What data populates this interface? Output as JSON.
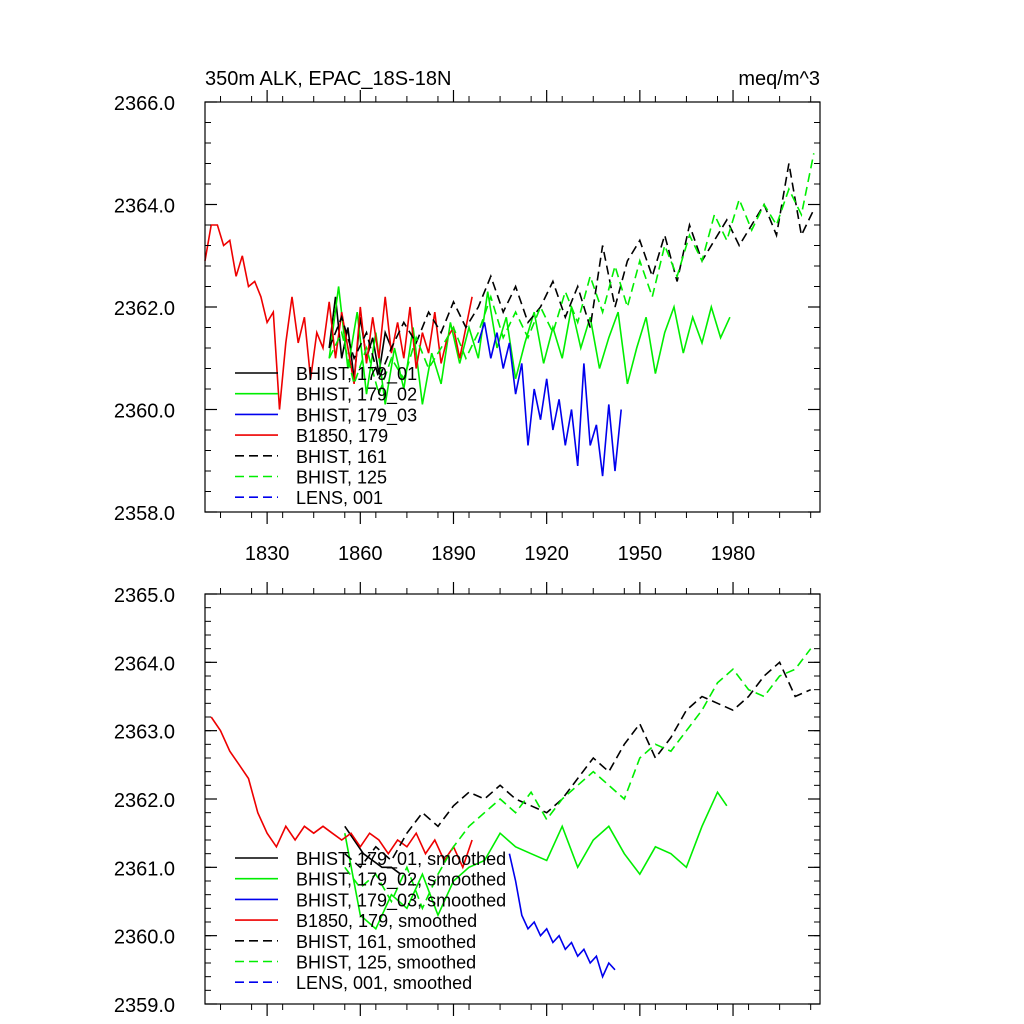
{
  "chart_data": [
    {
      "type": "line",
      "title": "350m ALK, EPAC_18S-18N",
      "units": "meq/m^3",
      "xlabel": "",
      "ylabel": "",
      "xlim": [
        1810,
        2008
      ],
      "ylim": [
        2358.0,
        2366.0
      ],
      "x_ticks": [
        1830,
        1860,
        1890,
        1920,
        1950,
        1980
      ],
      "x_tick_labels": [
        "1830",
        "1860",
        "1890",
        "1920",
        "1950",
        "1980"
      ],
      "y_ticks": [
        2358.0,
        2360.0,
        2362.0,
        2364.0,
        2366.0
      ],
      "y_tick_labels": [
        "2358.0",
        "2360.0",
        "2362.0",
        "2364.0",
        "2366.0"
      ],
      "grid": false,
      "legend_position": "bottom-left",
      "legend": [
        "BHIST, 179_01",
        "BHIST, 179_02",
        "BHIST, 179_03",
        "B1850, 179",
        "BHIST, 161",
        "BHIST, 125",
        "LENS, 001"
      ],
      "series": [
        {
          "name": "BHIST, 179_01",
          "color": "#000000",
          "dash": "solid",
          "x": [
            1850,
            1852,
            1854,
            1856,
            1858,
            1860,
            1862,
            1864,
            1866,
            1868,
            1870
          ],
          "y": [
            2361.2,
            2362.2,
            2361.0,
            2361.6,
            2360.6,
            2361.8,
            2361.0,
            2361.4,
            2360.7,
            2361.5,
            2361.2
          ]
        },
        {
          "name": "BHIST, 179_02",
          "color": "#00ee00",
          "dash": "solid",
          "x": [
            1850,
            1853,
            1856,
            1859,
            1862,
            1865,
            1868,
            1871,
            1874,
            1877,
            1880,
            1883,
            1886,
            1889,
            1892,
            1895,
            1898,
            1901,
            1904,
            1907,
            1910,
            1913,
            1916,
            1919,
            1922,
            1925,
            1928,
            1931,
            1934,
            1937,
            1940,
            1943,
            1946,
            1949,
            1952,
            1955,
            1958,
            1961,
            1964,
            1967,
            1970,
            1973,
            1976,
            1979
          ],
          "y": [
            2361.0,
            2362.4,
            2360.8,
            2361.9,
            2360.3,
            2361.5,
            2360.1,
            2361.2,
            2360.4,
            2361.6,
            2360.1,
            2361.1,
            2360.5,
            2361.7,
            2360.9,
            2361.6,
            2361.0,
            2362.3,
            2361.2,
            2361.8,
            2360.6,
            2361.3,
            2361.9,
            2360.9,
            2361.6,
            2361.0,
            2362.0,
            2361.2,
            2361.8,
            2360.8,
            2361.4,
            2361.9,
            2360.5,
            2361.2,
            2361.8,
            2360.7,
            2361.5,
            2362.0,
            2361.1,
            2361.8,
            2361.3,
            2362.0,
            2361.4,
            2361.8
          ]
        },
        {
          "name": "BHIST, 179_03",
          "color": "#0000ee",
          "dash": "solid",
          "x": [
            1898,
            1900,
            1902,
            1904,
            1906,
            1908,
            1910,
            1912,
            1914,
            1916,
            1918,
            1920,
            1922,
            1924,
            1926,
            1928,
            1930,
            1932,
            1934,
            1936,
            1938,
            1940,
            1942,
            1944
          ],
          "y": [
            2361.3,
            2361.7,
            2361.0,
            2361.5,
            2360.8,
            2361.3,
            2360.3,
            2360.9,
            2359.3,
            2360.4,
            2359.8,
            2360.6,
            2359.6,
            2360.2,
            2359.3,
            2360.0,
            2358.9,
            2360.9,
            2359.3,
            2359.7,
            2358.7,
            2360.1,
            2358.8,
            2360.0
          ]
        },
        {
          "name": "B1850, 179",
          "color": "#ee0000",
          "dash": "solid",
          "x": [
            1810,
            1812,
            1814,
            1816,
            1818,
            1820,
            1822,
            1824,
            1826,
            1828,
            1830,
            1832,
            1834,
            1836,
            1838,
            1840,
            1842,
            1844,
            1846,
            1848,
            1850,
            1852,
            1854,
            1856,
            1858,
            1860,
            1862,
            1864,
            1866,
            1868,
            1870,
            1872,
            1874,
            1876,
            1878,
            1880,
            1882,
            1884,
            1886,
            1888,
            1890,
            1892,
            1894,
            1896
          ],
          "y": [
            2362.9,
            2363.6,
            2363.6,
            2363.2,
            2363.3,
            2362.6,
            2363.0,
            2362.4,
            2362.5,
            2362.2,
            2361.7,
            2361.9,
            2360.0,
            2361.3,
            2362.2,
            2361.3,
            2361.8,
            2360.6,
            2361.5,
            2361.2,
            2362.1,
            2361.0,
            2361.9,
            2361.2,
            2360.5,
            2362.0,
            2360.9,
            2361.8,
            2361.0,
            2362.2,
            2361.1,
            2361.7,
            2361.0,
            2362.0,
            2360.8,
            2361.5,
            2361.1,
            2361.9,
            2360.9,
            2361.4,
            2361.6,
            2361.0,
            2361.6,
            2362.2
          ]
        },
        {
          "name": "BHIST, 161",
          "color": "#000000",
          "dash": "dashed",
          "x": [
            1850,
            1854,
            1858,
            1862,
            1866,
            1870,
            1874,
            1878,
            1882,
            1886,
            1890,
            1894,
            1898,
            1902,
            1906,
            1910,
            1914,
            1918,
            1922,
            1926,
            1930,
            1934,
            1938,
            1942,
            1946,
            1950,
            1954,
            1958,
            1962,
            1966,
            1970,
            1974,
            1978,
            1982,
            1986,
            1990,
            1994,
            1998,
            2002,
            2006
          ],
          "y": [
            2361.2,
            2361.8,
            2361.0,
            2361.5,
            2360.6,
            2361.2,
            2361.7,
            2361.3,
            2361.9,
            2361.5,
            2362.1,
            2361.6,
            2362.0,
            2362.6,
            2361.9,
            2362.4,
            2361.7,
            2362.0,
            2362.5,
            2361.8,
            2362.4,
            2361.6,
            2363.2,
            2362.0,
            2362.9,
            2363.3,
            2362.6,
            2363.4,
            2362.5,
            2363.6,
            2362.9,
            2363.3,
            2363.7,
            2363.2,
            2363.6,
            2364.0,
            2363.4,
            2364.8,
            2363.4,
            2363.9
          ]
        },
        {
          "name": "BHIST, 125",
          "color": "#00ee00",
          "dash": "dashed",
          "x": [
            1850,
            1854,
            1858,
            1862,
            1866,
            1870,
            1874,
            1878,
            1882,
            1886,
            1890,
            1894,
            1898,
            1902,
            1906,
            1910,
            1914,
            1918,
            1922,
            1926,
            1930,
            1934,
            1938,
            1942,
            1946,
            1950,
            1954,
            1958,
            1962,
            1966,
            1970,
            1974,
            1978,
            1982,
            1986,
            1990,
            1994,
            1998,
            2002,
            2006
          ],
          "y": [
            2361.0,
            2361.5,
            2360.5,
            2361.2,
            2360.3,
            2361.0,
            2360.6,
            2361.4,
            2360.8,
            2361.2,
            2361.6,
            2361.0,
            2361.5,
            2362.2,
            2361.4,
            2361.9,
            2361.4,
            2362.0,
            2361.5,
            2362.3,
            2361.7,
            2362.6,
            2361.9,
            2362.8,
            2362.0,
            2362.9,
            2362.2,
            2363.2,
            2362.6,
            2363.4,
            2362.9,
            2363.8,
            2363.3,
            2364.1,
            2363.5,
            2364.0,
            2363.6,
            2364.3,
            2363.8,
            2365.0
          ]
        },
        {
          "name": "LENS, 001",
          "color": "#0000ee",
          "dash": "dashed",
          "x": [],
          "y": []
        }
      ]
    },
    {
      "type": "line",
      "title": "",
      "xlabel": "",
      "ylabel": "",
      "xlim": [
        1810,
        2008
      ],
      "ylim": [
        2359.0,
        2365.0
      ],
      "x_ticks": [
        1830,
        1860,
        1890,
        1920,
        1950,
        1980
      ],
      "y_ticks": [
        2359.0,
        2360.0,
        2361.0,
        2362.0,
        2363.0,
        2364.0,
        2365.0
      ],
      "y_tick_labels": [
        "2359.0",
        "2360.0",
        "2361.0",
        "2362.0",
        "2363.0",
        "2364.0",
        "2365.0"
      ],
      "grid": false,
      "legend_position": "bottom-left",
      "legend": [
        "BHIST, 179_01, smoothed",
        "BHIST, 179_02, smoothed",
        "BHIST, 179_03, smoothed",
        "B1850, 179, smoothed",
        "BHIST, 161, smoothed",
        "BHIST, 125, smoothed",
        "LENS, 001, smoothed"
      ],
      "series": [
        {
          "name": "BHIST, 179_01, smoothed",
          "color": "#000000",
          "dash": "solid",
          "x": [
            1855,
            1858,
            1861,
            1864,
            1867,
            1870,
            1873
          ],
          "y": [
            2361.6,
            2361.4,
            2361.2,
            2361.1,
            2361.0,
            2361.0,
            2360.9
          ]
        },
        {
          "name": "BHIST, 179_02, smoothed",
          "color": "#00ee00",
          "dash": "solid",
          "x": [
            1855,
            1860,
            1865,
            1870,
            1875,
            1880,
            1885,
            1890,
            1895,
            1900,
            1905,
            1910,
            1915,
            1920,
            1925,
            1930,
            1935,
            1940,
            1945,
            1950,
            1955,
            1960,
            1965,
            1970,
            1975,
            1978
          ],
          "y": [
            2361.5,
            2360.3,
            2360.1,
            2360.6,
            2360.4,
            2360.9,
            2360.3,
            2360.8,
            2361.0,
            2361.1,
            2361.5,
            2361.3,
            2361.2,
            2361.1,
            2361.6,
            2361.0,
            2361.4,
            2361.6,
            2361.2,
            2360.9,
            2361.3,
            2361.2,
            2361.0,
            2361.6,
            2362.1,
            2361.9
          ]
        },
        {
          "name": "BHIST, 179_03, smoothed",
          "color": "#0000ee",
          "dash": "solid",
          "x": [
            1908,
            1910,
            1912,
            1914,
            1916,
            1918,
            1920,
            1922,
            1924,
            1926,
            1928,
            1930,
            1932,
            1934,
            1936,
            1938,
            1940,
            1942
          ],
          "y": [
            2361.2,
            2360.8,
            2360.3,
            2360.1,
            2360.2,
            2360.0,
            2360.1,
            2359.9,
            2360.0,
            2359.8,
            2359.9,
            2359.7,
            2359.8,
            2359.6,
            2359.7,
            2359.4,
            2359.6,
            2359.5
          ]
        },
        {
          "name": "B1850, 179, smoothed",
          "color": "#ee0000",
          "dash": "solid",
          "x": [
            1812,
            1815,
            1818,
            1821,
            1824,
            1827,
            1830,
            1833,
            1836,
            1839,
            1842,
            1845,
            1848,
            1851,
            1854,
            1857,
            1860,
            1863,
            1866,
            1869,
            1872,
            1875,
            1878,
            1881,
            1884,
            1887,
            1890,
            1893,
            1896
          ],
          "y": [
            2363.2,
            2363.0,
            2362.7,
            2362.5,
            2362.3,
            2361.8,
            2361.5,
            2361.3,
            2361.6,
            2361.4,
            2361.6,
            2361.5,
            2361.6,
            2361.5,
            2361.4,
            2361.5,
            2361.3,
            2361.5,
            2361.4,
            2361.2,
            2361.4,
            2361.3,
            2361.5,
            2361.2,
            2361.4,
            2361.1,
            2361.3,
            2361.0,
            2361.4
          ]
        },
        {
          "name": "BHIST, 161, smoothed",
          "color": "#000000",
          "dash": "dashed",
          "x": [
            1855,
            1860,
            1865,
            1870,
            1875,
            1880,
            1885,
            1890,
            1895,
            1900,
            1905,
            1910,
            1915,
            1920,
            1925,
            1930,
            1935,
            1940,
            1945,
            1950,
            1955,
            1960,
            1965,
            1970,
            1975,
            1980,
            1985,
            1990,
            1995,
            2000,
            2005
          ],
          "y": [
            2361.2,
            2361.0,
            2361.3,
            2361.1,
            2361.5,
            2361.8,
            2361.6,
            2361.9,
            2362.1,
            2362.0,
            2362.2,
            2362.0,
            2361.9,
            2361.8,
            2362.0,
            2362.3,
            2362.6,
            2362.4,
            2362.8,
            2363.1,
            2362.6,
            2362.9,
            2363.3,
            2363.5,
            2363.4,
            2363.3,
            2363.5,
            2363.8,
            2364.0,
            2363.5,
            2363.6
          ]
        },
        {
          "name": "BHIST, 125, smoothed",
          "color": "#00ee00",
          "dash": "dashed",
          "x": [
            1855,
            1860,
            1865,
            1870,
            1875,
            1880,
            1885,
            1890,
            1895,
            1900,
            1905,
            1910,
            1915,
            1920,
            1925,
            1930,
            1935,
            1940,
            1945,
            1950,
            1955,
            1960,
            1965,
            1970,
            1975,
            1980,
            1985,
            1990,
            1995,
            2000,
            2005
          ],
          "y": [
            2361.0,
            2360.7,
            2360.9,
            2360.5,
            2361.0,
            2360.4,
            2360.9,
            2361.3,
            2361.6,
            2361.8,
            2362.0,
            2361.8,
            2362.1,
            2361.7,
            2362.0,
            2362.2,
            2362.4,
            2362.2,
            2362.0,
            2362.6,
            2362.8,
            2362.7,
            2363.0,
            2363.3,
            2363.7,
            2363.9,
            2363.6,
            2363.5,
            2363.8,
            2363.9,
            2364.2
          ]
        },
        {
          "name": "LENS, 001, smoothed",
          "color": "#0000ee",
          "dash": "dashed",
          "x": [],
          "y": []
        }
      ]
    }
  ]
}
